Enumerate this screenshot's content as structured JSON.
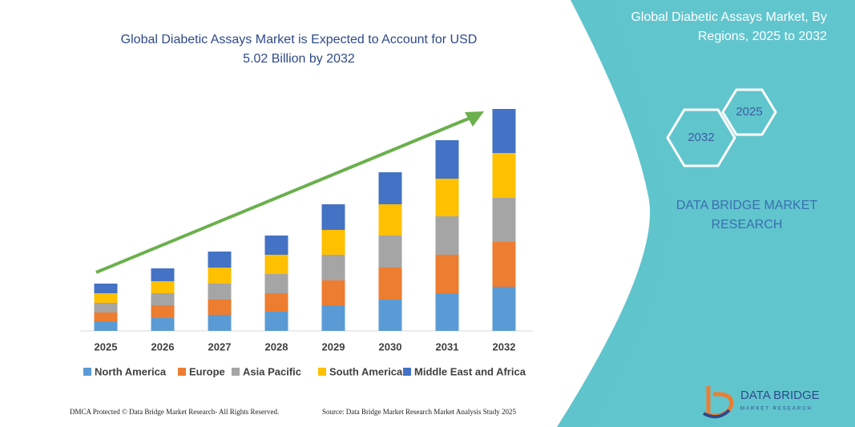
{
  "chart_data": {
    "type": "stacked_bar",
    "title": [
      "Global Diabetic Assays Market is Expected to Account for USD",
      "5.02 Billion by 2032"
    ],
    "categories": [
      "2025",
      "2026",
      "2027",
      "2028",
      "2029",
      "2030",
      "2031",
      "2032"
    ],
    "series": [
      {
        "name": "North America",
        "color": "#5b9bd5",
        "values": [
          12,
          16,
          20,
          24,
          32,
          39,
          47,
          55
        ]
      },
      {
        "name": "Europe",
        "color": "#ed7d31",
        "values": [
          11,
          16,
          19,
          23,
          31,
          40,
          48,
          56
        ]
      },
      {
        "name": "Asia Pacific",
        "color": "#a5a5a5",
        "values": [
          12,
          15,
          20,
          24,
          32,
          40,
          48,
          55
        ]
      },
      {
        "name": "South America",
        "color": "#ffc000",
        "values": [
          12,
          15,
          20,
          24,
          31,
          39,
          47,
          56
        ]
      },
      {
        "name": "Middle East and Africa",
        "color": "#4472c4",
        "values": [
          12,
          16,
          20,
          24,
          32,
          40,
          48,
          55
        ]
      }
    ]
  },
  "panel": {
    "title": [
      "Global Diabetic Assays Market, By",
      "Regions, 2025 to 2032"
    ],
    "hexagons": [
      "2025",
      "2032"
    ],
    "brand": [
      "DATA BRIDGE MARKET",
      "RESEARCH"
    ]
  },
  "footer": {
    "left": "DMCA Protected © Data Bridge Market Research-  All Rights Reserved.",
    "right": "Source: Data Bridge Market Research  Market Analysis Study 2025"
  },
  "logo": {
    "name": "DATA BRIDGE",
    "tagline": "MARKET RESEARCH"
  }
}
